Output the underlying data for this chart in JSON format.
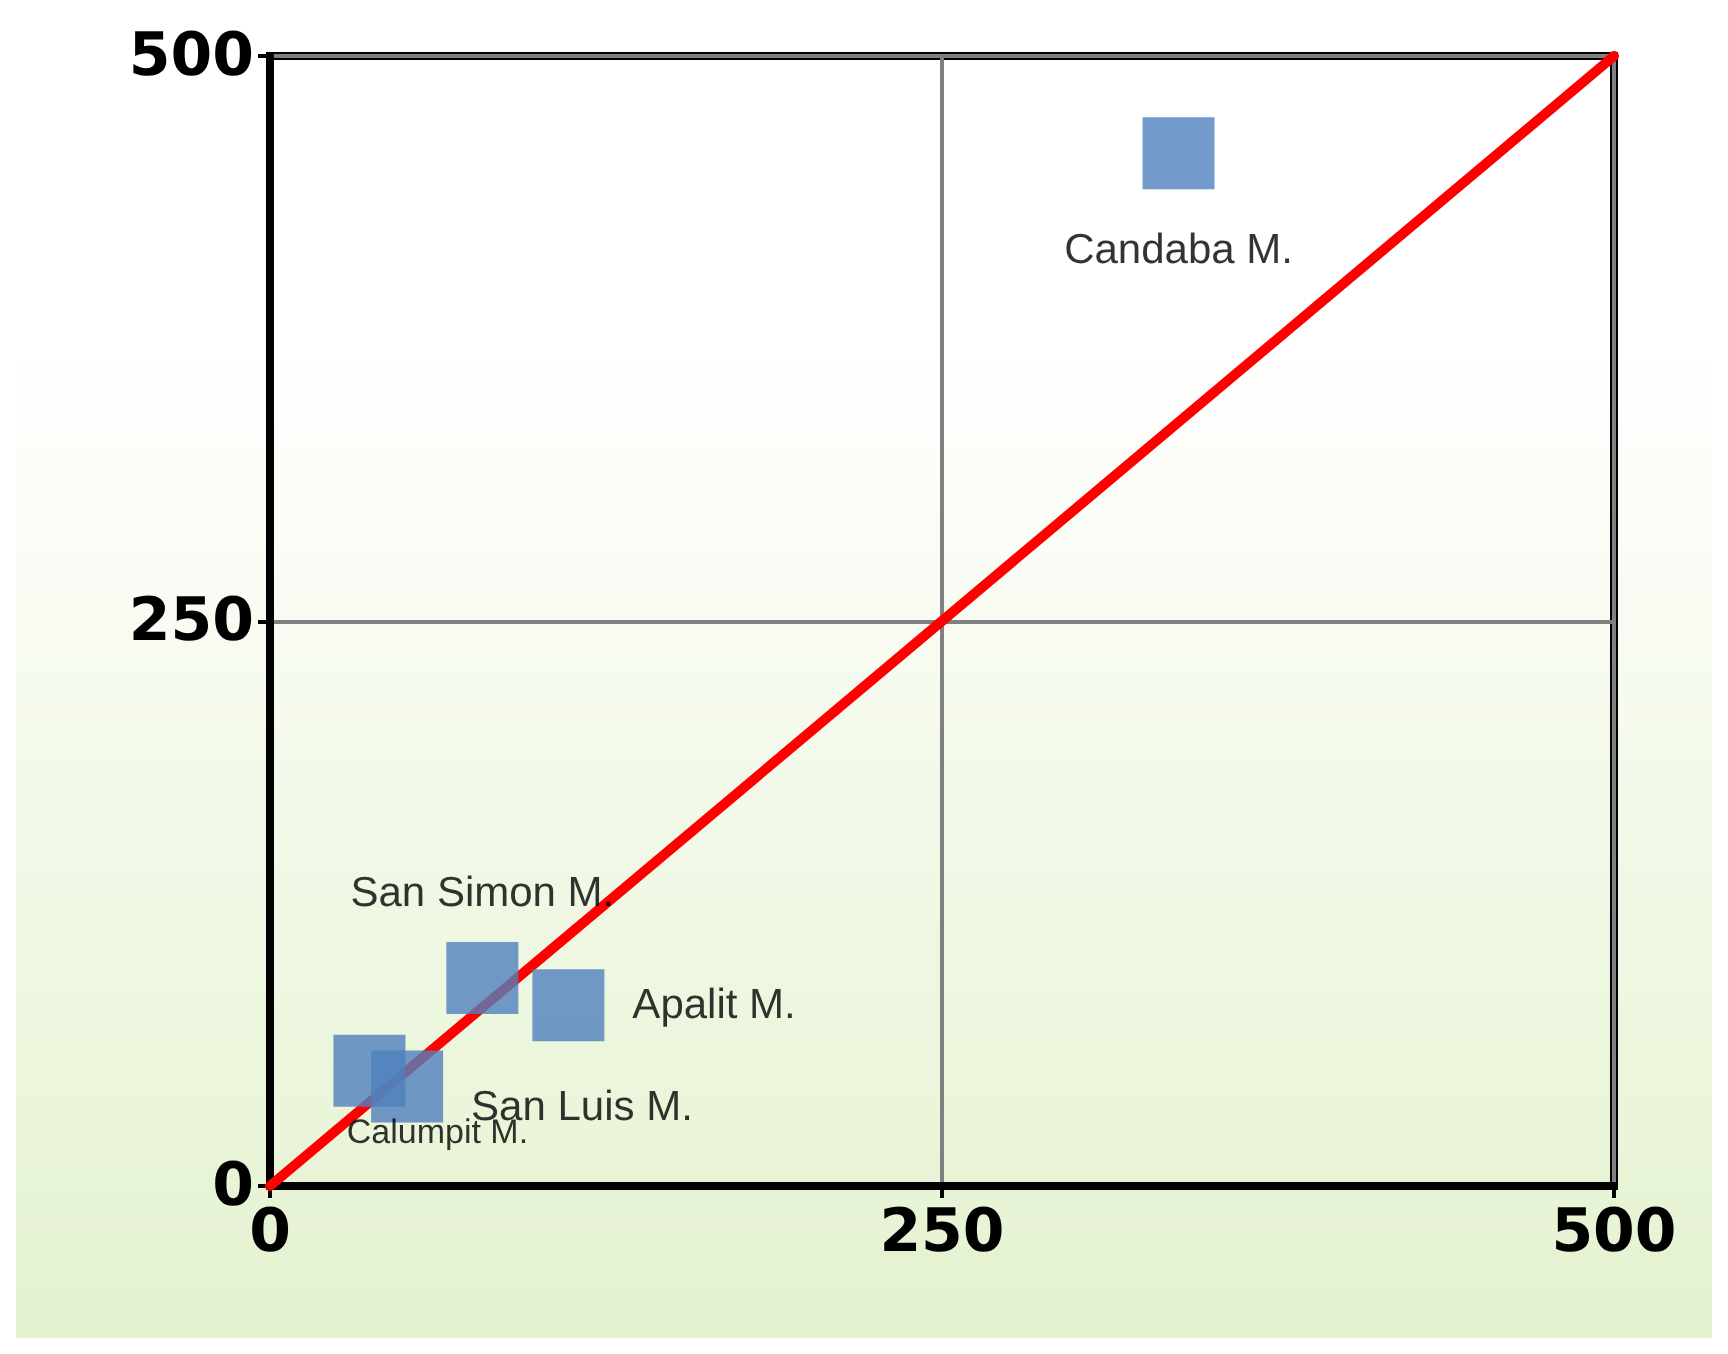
{
  "chart_data": {
    "type": "scatter",
    "marker": "square",
    "grid": true,
    "xlim": [
      0,
      500
    ],
    "xticks": [
      0,
      250,
      500
    ],
    "ylim": [
      0,
      500
    ],
    "yticks": [
      0,
      250,
      500
    ],
    "series": [
      {
        "type": "scatter",
        "color": "#4f81bd",
        "x": [
          338,
          79,
          111,
          37,
          51
        ],
        "values": [
          457,
          92,
          80,
          51,
          44
        ]
      },
      {
        "type": "line",
        "color": "#ff0000",
        "marker": "none",
        "line_style": "solid",
        "x": [
          0,
          500
        ],
        "values": [
          0,
          500
        ]
      }
    ],
    "annotations": [
      {
        "text": "Candaba M.",
        "x": 338,
        "y": 457
      },
      {
        "text": "San Simon M.",
        "x": 79,
        "y": 92
      },
      {
        "text": "Apalit M.",
        "x": 111,
        "y": 80
      },
      {
        "text": "Calumpit M.",
        "x": 37,
        "y": 51
      },
      {
        "text": "San Luis M.",
        "x": 51,
        "y": 44
      }
    ]
  }
}
